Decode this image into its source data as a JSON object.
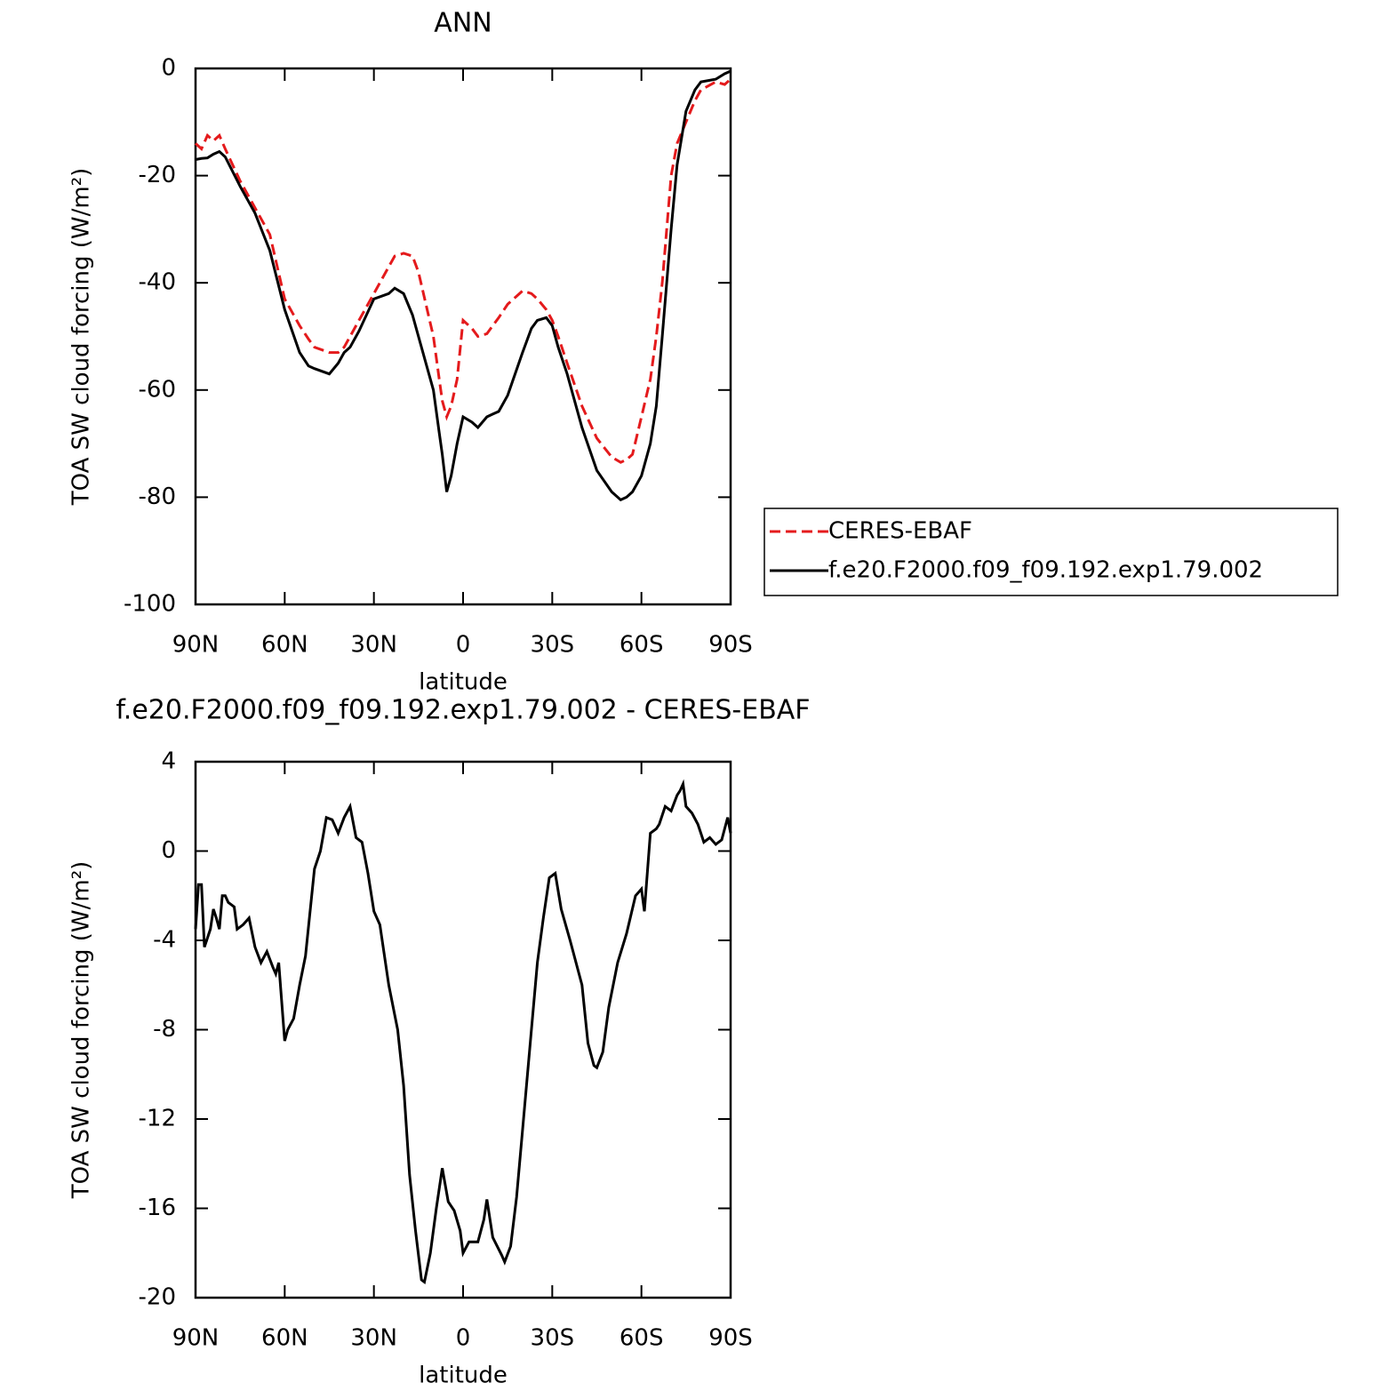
{
  "chart_data": [
    {
      "type": "line",
      "title": "ANN",
      "x_label": "latitude",
      "y_label": "TOA SW cloud forcing (W/m²)",
      "x": [
        90,
        88,
        86,
        84,
        82,
        80,
        75,
        70,
        65,
        60,
        55,
        52,
        50,
        45,
        42,
        40,
        38,
        35,
        30,
        25,
        23,
        20,
        17,
        15,
        10,
        8,
        7,
        5.5,
        4,
        2,
        0,
        -3,
        -5,
        -8,
        -10,
        -12,
        -15,
        -20,
        -23,
        -25,
        -28,
        -30,
        -32,
        -35,
        -40,
        -45,
        -50,
        -53,
        -55,
        -57,
        -60,
        -63,
        -65,
        -67,
        -70,
        -72,
        -75,
        -78,
        -80,
        -85,
        -88,
        -90
      ],
      "series": [
        {
          "name": "CERES-EBAF",
          "color": "#e41a1c",
          "line_style": "dashed",
          "values": [
            -14,
            -15,
            -12.5,
            -13.5,
            -12.5,
            -15,
            -21,
            -26,
            -31,
            -43,
            -48,
            -50.5,
            -52,
            -53,
            -53,
            -52,
            -50,
            -47,
            -42,
            -37,
            -35,
            -34.5,
            -35,
            -38,
            -50,
            -58,
            -62,
            -65,
            -63,
            -58,
            -47,
            -48.5,
            -50,
            -49.5,
            -48,
            -46.5,
            -44,
            -41.5,
            -42,
            -43,
            -45,
            -47,
            -50,
            -55,
            -63,
            -69,
            -72.5,
            -73.5,
            -73,
            -72,
            -65,
            -58,
            -50,
            -40,
            -20,
            -14,
            -10,
            -6,
            -4,
            -2.5,
            -3,
            -2
          ]
        },
        {
          "name": "f.e20.F2000.f09_f09.192.exp1.79.002",
          "color": "#000000",
          "line_style": "solid",
          "values": [
            -17,
            -16.8,
            -16.7,
            -16,
            -15.5,
            -16.5,
            -22,
            -27,
            -34,
            -45,
            -53,
            -55.5,
            -56,
            -57,
            -55,
            -53,
            -52,
            -49,
            -43,
            -42,
            -41,
            -42,
            -46,
            -50,
            -60,
            -68,
            -72,
            -79,
            -76,
            -70,
            -65,
            -66,
            -67,
            -65,
            -64.5,
            -64,
            -61,
            -53,
            -48.5,
            -47,
            -46.5,
            -48,
            -52,
            -57,
            -67,
            -75,
            -79,
            -80.5,
            -80,
            -79,
            -76,
            -70,
            -63,
            -50,
            -30,
            -18,
            -8,
            -4,
            -2.5,
            -2,
            -1,
            -0.5
          ]
        }
      ],
      "xlim": [
        90,
        -90
      ],
      "xticks": [
        {
          "value": 90,
          "label": "90N"
        },
        {
          "value": 60,
          "label": "60N"
        },
        {
          "value": 30,
          "label": "30N"
        },
        0,
        {
          "value": -30,
          "label": "30S"
        },
        {
          "value": -60,
          "label": "60S"
        },
        {
          "value": -90,
          "label": "90S"
        }
      ],
      "ylim": [
        -100,
        0
      ],
      "yticks": [
        -100,
        -80,
        -60,
        -40,
        -20,
        0
      ],
      "legend": "right"
    },
    {
      "type": "line",
      "title": "f.e20.F2000.f09_f09.192.exp1.79.002 - CERES-EBAF",
      "x_label": "latitude",
      "y_label": "TOA SW cloud forcing (W/m²)",
      "x": [
        90,
        89,
        88,
        87,
        85,
        84,
        83,
        82,
        81,
        80,
        79,
        77,
        76,
        74,
        72,
        70,
        68,
        66,
        64,
        63,
        62,
        60,
        59,
        57,
        55,
        53,
        50,
        48,
        46,
        44,
        42,
        40,
        38,
        36,
        34,
        32,
        30,
        28,
        25,
        22,
        20,
        18,
        16,
        14,
        13,
        11,
        9,
        7,
        5,
        3,
        1,
        0,
        -2,
        -5,
        -7,
        -8,
        -10,
        -13,
        -14,
        -16,
        -18,
        -20,
        -23,
        -25,
        -27,
        -29,
        -31,
        -33,
        -36,
        -40,
        -42,
        -44,
        -45,
        -47,
        -49,
        -52,
        -55,
        -58,
        -60,
        -61,
        -63,
        -65,
        -66,
        -68,
        -70,
        -72,
        -73,
        -74,
        -75,
        -77,
        -79,
        -81,
        -83,
        -85,
        -87,
        -89,
        -90
      ],
      "series": [
        {
          "color": "#000000",
          "line_style": "solid",
          "values": [
            -3.5,
            -1.5,
            -1.5,
            -4.3,
            -3.5,
            -2.6,
            -3,
            -3.5,
            -2,
            -2,
            -2.3,
            -2.5,
            -3.5,
            -3.3,
            -3,
            -4.3,
            -5,
            -4.5,
            -5.2,
            -5.5,
            -5,
            -8.5,
            -8,
            -7.5,
            -6,
            -4.7,
            -0.8,
            0,
            1.5,
            1.4,
            0.8,
            1.5,
            2,
            0.6,
            0.4,
            -1,
            -2.7,
            -3.3,
            -6,
            -8,
            -10.5,
            -14.5,
            -17,
            -19.2,
            -19.3,
            -18,
            -16,
            -14.2,
            -15.7,
            -16.1,
            -17,
            -18,
            -17.5,
            -17.5,
            -16.5,
            -15.6,
            -17.3,
            -18.1,
            -18.4,
            -17.7,
            -15.5,
            -12.5,
            -8,
            -5,
            -3,
            -1.2,
            -1,
            -2.6,
            -4,
            -6,
            -8.6,
            -9.6,
            -9.7,
            -9,
            -7,
            -5,
            -3.7,
            -2,
            -1.7,
            -2.7,
            0.8,
            1,
            1.2,
            2,
            1.8,
            2.5,
            2.7,
            3,
            2,
            1.7,
            1.2,
            0.4,
            0.6,
            0.3,
            0.5,
            1.5,
            0.8
          ]
        }
      ],
      "xlim": [
        90,
        -90
      ],
      "xticks": [
        {
          "value": 90,
          "label": "90N"
        },
        {
          "value": 60,
          "label": "60N"
        },
        {
          "value": 30,
          "label": "30N"
        },
        0,
        {
          "value": -30,
          "label": "30S"
        },
        {
          "value": -60,
          "label": "60S"
        },
        {
          "value": -90,
          "label": "90S"
        }
      ],
      "ylim": [
        -20,
        4
      ],
      "yticks": [
        -20,
        -16,
        -12,
        -8,
        -4,
        0,
        4
      ]
    }
  ]
}
